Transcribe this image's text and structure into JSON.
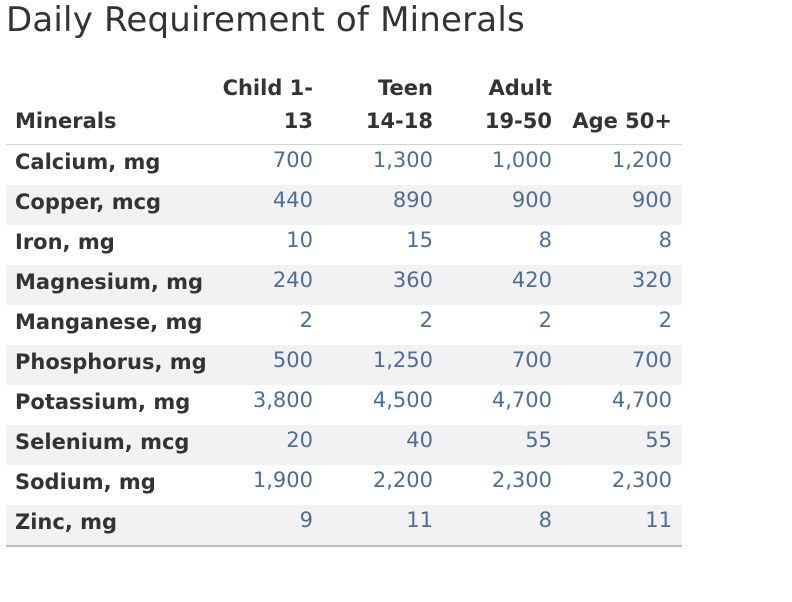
{
  "chart_data": {
    "type": "table",
    "title": "Daily Requirement of Minerals",
    "row_header": "Minerals",
    "columns": [
      {
        "line1": "Child 1-",
        "line2": "13"
      },
      {
        "line1": "Teen",
        "line2": "14-18"
      },
      {
        "line1": "Adult",
        "line2": "19-50"
      },
      {
        "line1": "",
        "line2": "Age 50+"
      }
    ],
    "rows": [
      {
        "label": "Calcium, mg",
        "values": [
          "700",
          "1,300",
          "1,000",
          "1,200"
        ]
      },
      {
        "label": "Copper, mcg",
        "values": [
          "440",
          "890",
          "900",
          "900"
        ]
      },
      {
        "label": "Iron, mg",
        "values": [
          "10",
          "15",
          "8",
          "8"
        ]
      },
      {
        "label": "Magnesium, mg",
        "values": [
          "240",
          "360",
          "420",
          "320"
        ]
      },
      {
        "label": "Manganese, mg",
        "values": [
          "2",
          "2",
          "2",
          "2"
        ]
      },
      {
        "label": "Phosphorus, mg",
        "values": [
          "500",
          "1,250",
          "700",
          "700"
        ]
      },
      {
        "label": "Potassium, mg",
        "values": [
          "3,800",
          "4,500",
          "4,700",
          "4,700"
        ]
      },
      {
        "label": "Selenium, mcg",
        "values": [
          "20",
          "40",
          "55",
          "55"
        ]
      },
      {
        "label": "Sodium, mg",
        "values": [
          "1,900",
          "2,200",
          "2,300",
          "2,300"
        ]
      },
      {
        "label": "Zinc, mg",
        "values": [
          "9",
          "11",
          "8",
          "11"
        ]
      }
    ]
  },
  "colors": {
    "value_text": "#4e6e9a",
    "label_text": "#333333",
    "band": "#f2f2f4"
  }
}
